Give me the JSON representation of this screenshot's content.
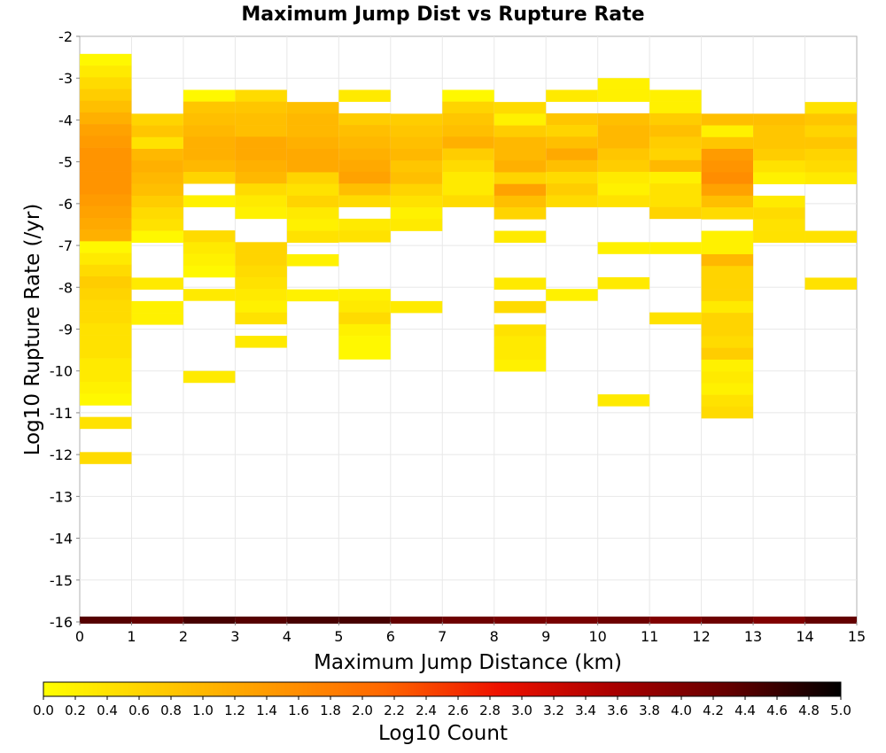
{
  "chart_data": {
    "type": "heatmap",
    "title": "Maximum Jump Dist vs Rupture Rate",
    "xlabel": "Maximum Jump Distance (km)",
    "ylabel": "Log10 Rupture Rate (/yr)",
    "xlim": [
      0,
      15
    ],
    "ylim": [
      -16,
      -2
    ],
    "x_ticks": [
      "0",
      "1",
      "2",
      "3",
      "4",
      "5",
      "6",
      "7",
      "8",
      "9",
      "10",
      "11",
      "12",
      "13",
      "14",
      "15"
    ],
    "y_ticks": [
      "-2",
      "-3",
      "-4",
      "-5",
      "-6",
      "-7",
      "-8",
      "-9",
      "-10",
      "-11",
      "-12",
      "-13",
      "-14",
      "-15",
      "-16"
    ],
    "x_bin_width": 1,
    "y_bin_height": 0.28,
    "grid": true,
    "colorbar": {
      "label": "Log10 Count",
      "range": [
        0,
        5
      ],
      "ticks": [
        "0.0",
        "0.2",
        "0.4",
        "0.6",
        "0.8",
        "1.0",
        "1.2",
        "1.4",
        "1.6",
        "1.8",
        "2.0",
        "2.2",
        "2.4",
        "2.6",
        "2.8",
        "3.0",
        "3.2",
        "3.4",
        "3.6",
        "3.8",
        "4.0",
        "4.2",
        "4.4",
        "4.6",
        "4.8",
        "5.0"
      ],
      "colormap": [
        "#ffff00",
        "#ffcc00",
        "#ff9900",
        "#ff6600",
        "#ee1100",
        "#aa0000",
        "#660000",
        "#000000"
      ]
    },
    "cells": [
      {
        "x": 0,
        "y_top": -2.42,
        "y_bot": -11.0,
        "values": [
          0.1,
          0.3,
          0.5,
          0.7,
          0.9,
          1.1,
          1.3,
          1.4,
          1.5,
          1.5,
          1.5,
          1.5,
          1.4,
          1.3,
          1.2,
          1.1,
          0.1,
          0.3,
          0.5,
          0.7,
          0.6,
          0.5,
          0.5,
          0.4,
          0.4,
          0.4,
          0.3,
          0.3,
          0.2,
          0.1,
          null,
          0.4,
          null,
          null,
          0.5
        ]
      },
      {
        "x": 1,
        "y_top": -3.85,
        "y_bot": -8.4,
        "values": [
          0.6,
          0.8,
          0.4,
          1.0,
          1.1,
          1.0,
          0.9,
          0.7,
          0.5,
          0.4,
          0.1,
          null,
          null,
          null,
          0.3,
          null,
          0.2,
          0.2
        ]
      },
      {
        "x": 2,
        "y_top": -3.28,
        "y_bot": -10.45,
        "values": [
          0.1,
          0.8,
          0.9,
          1.0,
          1.1,
          1.1,
          1.0,
          0.6,
          null,
          0.2,
          null,
          null,
          0.5,
          0.3,
          0.2,
          0.1,
          null,
          0.3,
          null,
          null,
          null,
          null,
          null,
          null,
          0.3
        ]
      },
      {
        "x": 3,
        "y_top": -3.28,
        "y_bot": -10.1,
        "values": [
          0.5,
          0.8,
          0.9,
          0.9,
          1.2,
          1.2,
          1.1,
          1.0,
          0.5,
          0.3,
          0.2,
          null,
          null,
          0.6,
          0.6,
          0.5,
          0.4,
          0.3,
          0.2,
          0.4,
          null,
          0.3
        ]
      },
      {
        "x": 4,
        "y_top": -3.57,
        "y_bot": -8.84,
        "values": [
          0.9,
          1.0,
          1.0,
          1.1,
          1.2,
          1.2,
          0.6,
          0.4,
          0.6,
          0.3,
          0.2,
          0.4,
          null,
          0.2,
          null,
          null,
          0.2
        ]
      },
      {
        "x": 5,
        "y_top": -3.28,
        "y_bot": -10.7,
        "values": [
          0.3,
          null,
          0.7,
          0.9,
          1.0,
          1.1,
          1.2,
          1.3,
          0.9,
          0.5,
          null,
          0.3,
          0.4,
          null,
          null,
          null,
          null,
          0.2,
          0.3,
          0.5,
          0.2,
          0.1,
          0.1
        ]
      },
      {
        "x": 6,
        "y_top": -3.85,
        "y_bot": -8.6,
        "values": [
          0.7,
          0.8,
          0.9,
          1.0,
          0.8,
          0.9,
          0.6,
          0.4,
          0.2,
          0.3,
          null,
          null,
          null,
          null,
          null,
          null,
          0.3
        ]
      },
      {
        "x": 7,
        "y_top": -3.28,
        "y_bot": -6.98,
        "values": [
          0.1,
          0.6,
          0.8,
          0.9,
          1.1,
          0.7,
          0.5,
          0.3,
          0.3,
          0.5
        ]
      },
      {
        "x": 8,
        "y_top": -3.57,
        "y_bot": -10.1,
        "values": [
          0.5,
          0.2,
          0.7,
          1.0,
          1.0,
          1.1,
          0.6,
          1.3,
          0.9,
          0.6,
          null,
          0.3,
          null,
          null,
          null,
          0.3,
          null,
          0.5,
          null,
          0.4,
          0.3,
          0.3,
          0.2
        ]
      },
      {
        "x": 9,
        "y_top": -3.28,
        "y_bot": -8.84,
        "values": [
          0.3,
          null,
          0.8,
          0.6,
          0.9,
          1.2,
          0.9,
          0.5,
          0.7,
          0.5,
          null,
          null,
          null,
          null,
          null,
          null,
          null,
          0.2
        ]
      },
      {
        "x": 10,
        "y_top": -3.0,
        "y_bot": -11.0,
        "values": [
          0.2,
          0.2,
          null,
          0.9,
          1.0,
          1.0,
          0.8,
          0.7,
          0.3,
          0.2,
          0.4,
          null,
          null,
          null,
          0.2,
          null,
          null,
          0.3,
          null,
          null,
          null,
          null,
          null,
          null,
          null,
          null,
          null,
          0.3
        ]
      },
      {
        "x": 11,
        "y_top": -3.28,
        "y_bot": -9.2,
        "values": [
          0.2,
          0.2,
          0.7,
          0.9,
          0.7,
          0.6,
          1.0,
          0.2,
          0.4,
          0.4,
          0.6,
          null,
          null,
          0.2,
          null,
          null,
          null,
          null,
          null,
          0.4
        ]
      },
      {
        "x": 12,
        "y_top": -3.85,
        "y_bot": -11.28,
        "values": [
          0.9,
          0.2,
          0.8,
          1.4,
          1.5,
          1.6,
          1.3,
          0.9,
          0.5,
          null,
          0.2,
          0.2,
          1.0,
          0.6,
          0.6,
          0.6,
          0.3,
          0.6,
          0.6,
          0.5,
          0.7,
          0.2,
          0.3,
          0.2,
          0.4,
          0.5
        ]
      },
      {
        "x": 13,
        "y_top": -3.85,
        "y_bot": -6.98,
        "values": [
          0.9,
          0.8,
          0.8,
          0.7,
          0.4,
          0.2,
          null,
          0.3,
          0.5,
          0.4,
          0.4
        ]
      },
      {
        "x": 14,
        "y_top": -3.57,
        "y_bot": -8.1,
        "values": [
          0.4,
          0.8,
          0.6,
          0.8,
          0.6,
          0.5,
          0.3,
          null,
          null,
          null,
          null,
          0.4,
          null,
          null,
          null,
          0.4
        ]
      }
    ],
    "bottom_row": {
      "y": -16,
      "values": [
        4.4,
        4.3,
        4.5,
        4.4,
        4.5,
        4.5,
        4.3,
        4.2,
        4.1,
        4.1,
        4.2,
        4.0,
        4.2,
        4.0,
        4.3
      ]
    }
  }
}
